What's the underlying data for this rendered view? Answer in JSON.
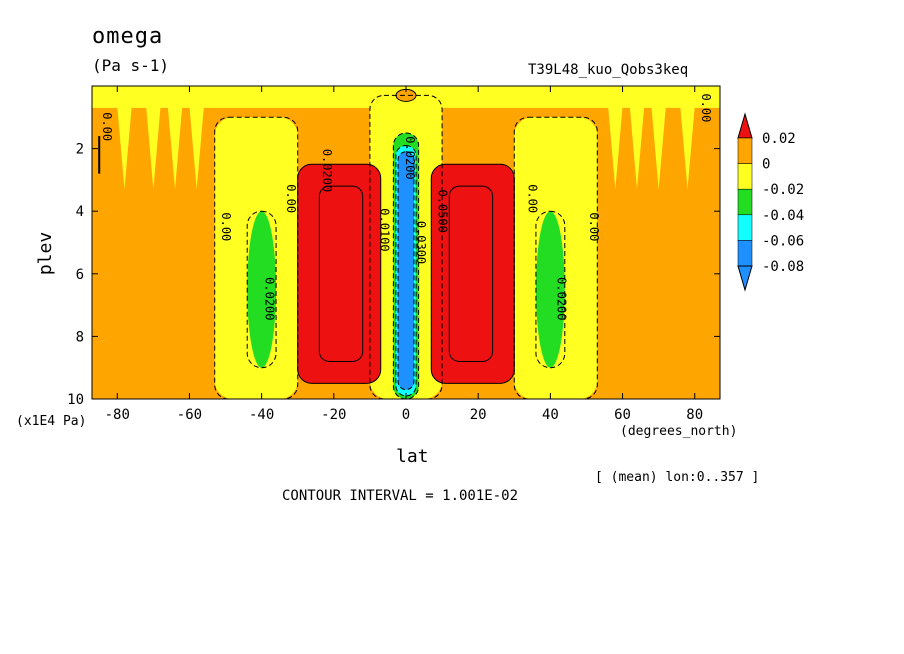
{
  "title": "omega",
  "units": "(Pa s-1)",
  "run_label": "T39L48_kuo_Qobs3keq",
  "x_scale_label": "(x1E4 Pa)",
  "x_units_label": "(degrees_north)",
  "x_axis_label": "lat",
  "y_axis_label": "plev",
  "mean_note": "[ (mean) lon:0..357 ]",
  "contour_interval": "CONTOUR INTERVAL = 1.001E-02",
  "colors": {
    "red": "#ee1111",
    "orange": "#ffa500",
    "yellow": "#ffff22",
    "green": "#22dd22",
    "cyan": "#11ffff",
    "blue": "#1e90ff"
  },
  "chart_data": {
    "type": "heatmap",
    "xlim": [
      -87,
      87
    ],
    "ylim": [
      10,
      0
    ],
    "x_ticks": [
      -80,
      -60,
      -40,
      -20,
      0,
      20,
      40,
      60,
      80
    ],
    "y_ticks": [
      2,
      4,
      6,
      8,
      10
    ],
    "colorbar": {
      "labels": [
        "0.02",
        "0",
        "-0.02",
        "-0.04",
        "-0.06",
        "-0.08"
      ],
      "bins": [
        {
          "range": "> 0.02",
          "color": "#ee1111"
        },
        {
          "range": "0 to 0.02",
          "color": "#ffa500"
        },
        {
          "range": "-0.02 to 0",
          "color": "#ffff22"
        },
        {
          "range": "-0.04 to -0.02",
          "color": "#22dd22"
        },
        {
          "range": "-0.06 to -0.04",
          "color": "#11ffff"
        },
        {
          "range": "-0.08 to -0.06",
          "color": "#1e90ff"
        },
        {
          "range": "< -0.08",
          "color": "#1e90ff"
        }
      ]
    },
    "regions": [
      {
        "fill": "yellow",
        "shape": "top-band",
        "x": [
          -87,
          87
        ],
        "y": [
          0,
          0.7
        ]
      },
      {
        "fill": "yellow",
        "shape": "column",
        "x": [
          -53,
          -30
        ],
        "y": [
          1,
          10
        ]
      },
      {
        "fill": "yellow",
        "shape": "column",
        "x": [
          30,
          53
        ],
        "y": [
          1,
          10
        ]
      },
      {
        "fill": "yellow",
        "shape": "column",
        "x": [
          -10,
          10
        ],
        "y": [
          0.3,
          10
        ]
      },
      {
        "fill": "green",
        "shape": "ellipse",
        "x": [
          -44,
          -36
        ],
        "y": [
          4,
          9
        ]
      },
      {
        "fill": "green",
        "shape": "ellipse",
        "x": [
          36,
          44
        ],
        "y": [
          4,
          9
        ]
      },
      {
        "fill": "red",
        "shape": "blob",
        "x": [
          -30,
          -7
        ],
        "y": [
          2.5,
          9.5
        ]
      },
      {
        "fill": "red",
        "shape": "blob",
        "x": [
          7,
          30
        ],
        "y": [
          2.5,
          9.5
        ]
      },
      {
        "fill": "green",
        "shape": "column",
        "x": [
          -3.5,
          3.5
        ],
        "y": [
          1.5,
          10
        ]
      },
      {
        "fill": "cyan",
        "shape": "column",
        "x": [
          -2.8,
          2.8
        ],
        "y": [
          1.9,
          9.9
        ]
      },
      {
        "fill": "blue",
        "shape": "column",
        "x": [
          -2.2,
          2.2
        ],
        "y": [
          2.1,
          9.7
        ]
      }
    ],
    "contour_labels": [
      {
        "text": "0.00",
        "x": -84,
        "y": 1.3
      },
      {
        "text": "0.00",
        "x": 82,
        "y": 0.7
      },
      {
        "text": "0.00",
        "x": -51,
        "y": 4.5
      },
      {
        "text": "0.00",
        "x": -33,
        "y": 3.6
      },
      {
        "text": "0.00",
        "x": 34,
        "y": 3.6
      },
      {
        "text": "0.00",
        "x": 51,
        "y": 4.5
      },
      {
        "text": "0.0200",
        "x": -23,
        "y": 2.7
      },
      {
        "text": "0.0200",
        "x": -39,
        "y": 6.8
      },
      {
        "text": "0.0200",
        "x": 42,
        "y": 6.8
      },
      {
        "text": "0.0100",
        "x": -7,
        "y": 4.6
      },
      {
        "text": "0.0500",
        "x": 9,
        "y": 4.0
      },
      {
        "text": "0.0300",
        "x": 3,
        "y": 5.0
      },
      {
        "text": "0.0200",
        "x": 0,
        "y": 2.3
      }
    ]
  }
}
